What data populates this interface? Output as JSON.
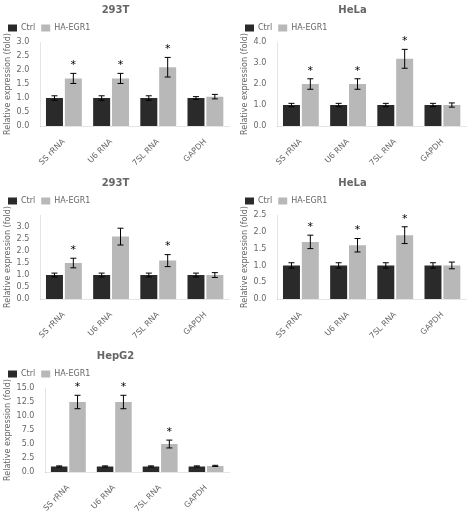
{
  "chart_data": [
    {
      "type": "bar",
      "title": "293T",
      "ylabel": "Relative expression (fold)",
      "categories": [
        "SS rRNA",
        "U6 RNA",
        "7SL RNA",
        "GAPDH"
      ],
      "series": [
        {
          "name": "Ctrl",
          "color": "#2a2a2a",
          "values": [
            1.0,
            1.0,
            1.0,
            1.0
          ],
          "errors": [
            0.08,
            0.08,
            0.08,
            0.05
          ]
        },
        {
          "name": "HA-EGR1",
          "color": "#b8b8b8",
          "values": [
            1.7,
            1.7,
            2.1,
            1.05
          ],
          "errors": [
            0.18,
            0.18,
            0.35,
            0.08
          ]
        }
      ],
      "ylim": [
        0,
        3.0
      ],
      "yticks": [
        {
          "value": 0.0,
          "label": "0.0"
        },
        0.5,
        {
          "value": 1.0,
          "label": "1.0"
        },
        1.5,
        {
          "value": 2.0,
          "label": "2.0"
        },
        2.5,
        {
          "value": 3.0,
          "label": "3.0"
        }
      ],
      "grid": false,
      "legend": "upper left",
      "annotations": [
        {
          "text": "*",
          "category": "SS rRNA",
          "series": "HA-EGR1"
        },
        {
          "text": "*",
          "category": "U6 RNA",
          "series": "HA-EGR1"
        },
        {
          "text": "*",
          "category": "7SL RNA",
          "series": "HA-EGR1"
        }
      ]
    },
    {
      "type": "bar",
      "title": "HeLa",
      "ylabel": "Relative expression (fold)",
      "categories": [
        "SS rRNA",
        "U6 RNA",
        "7SL RNA",
        "GAPDH"
      ],
      "series": [
        {
          "name": "Ctrl",
          "color": "#2a2a2a",
          "values": [
            1.0,
            1.0,
            1.0,
            1.0
          ],
          "errors": [
            0.08,
            0.08,
            0.08,
            0.08
          ]
        },
        {
          "name": "HA-EGR1",
          "color": "#b8b8b8",
          "values": [
            2.0,
            2.0,
            3.2,
            1.0
          ],
          "errors": [
            0.25,
            0.25,
            0.45,
            0.1
          ]
        }
      ],
      "ylim": [
        0,
        4.0
      ],
      "yticks": [
        {
          "value": 0.0,
          "label": "0.0"
        },
        {
          "value": 1.0,
          "label": "1.0"
        },
        {
          "value": 2.0,
          "label": "2.0"
        },
        {
          "value": 3.0,
          "label": "3.0"
        },
        {
          "value": 4.0,
          "label": "4.0"
        }
      ],
      "grid": false,
      "legend": "upper left",
      "annotations": [
        {
          "text": "*",
          "category": "SS rRNA",
          "series": "HA-EGR1"
        },
        {
          "text": "*",
          "category": "U6 RNA",
          "series": "HA-EGR1"
        },
        {
          "text": "*",
          "category": "7SL RNA",
          "series": "HA-EGR1"
        }
      ]
    },
    {
      "type": "bar",
      "title": "293T",
      "ylabel": "Relative expression (fold)",
      "categories": [
        "SS rRNA",
        "U6 RNA",
        "7SL RNA",
        "GAPDH"
      ],
      "series": [
        {
          "name": "Ctrl",
          "color": "#2a2a2a",
          "values": [
            1.0,
            1.0,
            1.0,
            1.0
          ],
          "errors": [
            0.08,
            0.08,
            0.08,
            0.08
          ]
        },
        {
          "name": "HA-EGR1",
          "color": "#b8b8b8",
          "values": [
            1.5,
            2.6,
            1.6,
            1.0
          ],
          "errors": [
            0.2,
            0.35,
            0.25,
            0.1
          ]
        }
      ],
      "ylim": [
        0,
        3.5
      ],
      "yticks": [
        {
          "value": 0.0,
          "label": "0.0"
        },
        0.5,
        {
          "value": 1.0,
          "label": "1.0"
        },
        1.5,
        {
          "value": 2.0,
          "label": "2.0"
        },
        2.5,
        {
          "value": 3.0,
          "label": "3.0"
        }
      ],
      "grid": false,
      "legend": "upper left",
      "annotations": [
        {
          "text": "*",
          "category": "SS rRNA",
          "series": "HA-EGR1"
        },
        {
          "text": "*",
          "category": "7SL RNA",
          "series": "HA-EGR1"
        }
      ]
    },
    {
      "type": "bar",
      "title": "HeLa",
      "ylabel": "Relative expression (fold)",
      "categories": [
        "SS rRNA",
        "U6 RNA",
        "7SL RNA",
        "GAPDH"
      ],
      "series": [
        {
          "name": "Ctrl",
          "color": "#2a2a2a",
          "values": [
            1.0,
            1.0,
            1.0,
            1.0
          ],
          "errors": [
            0.08,
            0.08,
            0.08,
            0.08
          ]
        },
        {
          "name": "HA-EGR1",
          "color": "#b8b8b8",
          "values": [
            1.7,
            1.6,
            1.9,
            1.0
          ],
          "errors": [
            0.2,
            0.2,
            0.25,
            0.1
          ]
        }
      ],
      "ylim": [
        0,
        2.5
      ],
      "yticks": [
        {
          "value": 0.0,
          "label": "0.0"
        },
        0.5,
        {
          "value": 1.0,
          "label": "1.0"
        },
        1.5,
        {
          "value": 2.0,
          "label": "2.0"
        },
        2.5
      ],
      "grid": false,
      "legend": "upper left",
      "annotations": [
        {
          "text": "*",
          "category": "SS rRNA",
          "series": "HA-EGR1"
        },
        {
          "text": "*",
          "category": "U6 RNA",
          "series": "HA-EGR1"
        },
        {
          "text": "*",
          "category": "7SL RNA",
          "series": "HA-EGR1"
        }
      ]
    },
    {
      "type": "bar",
      "title": "HepG2",
      "ylabel": "Relative expression (fold)",
      "categories": [
        "SS rRNA",
        "U6 RNA",
        "7SL RNA",
        "GAPDH"
      ],
      "series": [
        {
          "name": "Ctrl",
          "color": "#2a2a2a",
          "values": [
            1.0,
            1.0,
            1.0,
            1.0
          ],
          "errors": [
            0.1,
            0.1,
            0.1,
            0.1
          ]
        },
        {
          "name": "HA-EGR1",
          "color": "#b8b8b8",
          "values": [
            12.5,
            12.5,
            5.0,
            1.1
          ],
          "errors": [
            1.2,
            1.2,
            0.7,
            0.1
          ]
        }
      ],
      "ylim": [
        0,
        15.0
      ],
      "yticks": [
        {
          "value": 0.0,
          "label": "0.0"
        },
        2.5,
        {
          "value": 5.0,
          "label": "5.0"
        },
        7.5,
        {
          "value": 10.0,
          "label": "10.0"
        },
        12.5,
        {
          "value": 15.0,
          "label": "15.0"
        }
      ],
      "grid": false,
      "legend": "upper left",
      "annotations": [
        {
          "text": "*",
          "category": "SS rRNA",
          "series": "HA-EGR1"
        },
        {
          "text": "*",
          "category": "U6 RNA",
          "series": "HA-EGR1"
        },
        {
          "text": "*",
          "category": "7SL RNA",
          "series": "HA-EGR1"
        }
      ]
    }
  ]
}
